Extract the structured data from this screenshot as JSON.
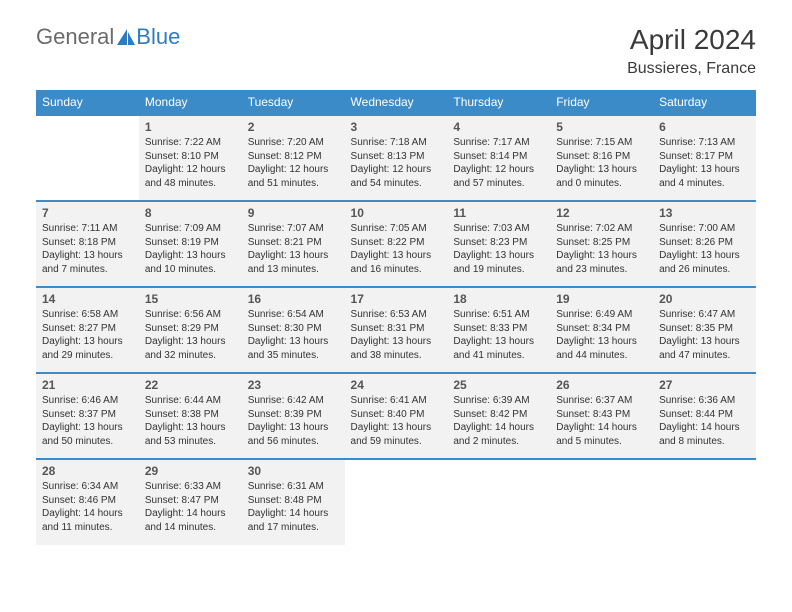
{
  "brand": {
    "part1": "General",
    "part2": "Blue"
  },
  "title": "April 2024",
  "location": "Bussieres, France",
  "weekday_headers": [
    "Sunday",
    "Monday",
    "Tuesday",
    "Wednesday",
    "Thursday",
    "Friday",
    "Saturday"
  ],
  "colors": {
    "header_bg": "#3b8bc9",
    "header_text": "#ffffff",
    "cell_bg": "#f2f2f2",
    "rule": "#3b8bc9",
    "title_color": "#3a3a3a",
    "logo_gray": "#6b6b6b",
    "logo_blue": "#2f7bbf"
  },
  "weeks": [
    [
      {
        "day": "",
        "sunrise": "",
        "sunset": "",
        "daylight1": "",
        "daylight2": ""
      },
      {
        "day": "1",
        "sunrise": "Sunrise: 7:22 AM",
        "sunset": "Sunset: 8:10 PM",
        "daylight1": "Daylight: 12 hours",
        "daylight2": "and 48 minutes."
      },
      {
        "day": "2",
        "sunrise": "Sunrise: 7:20 AM",
        "sunset": "Sunset: 8:12 PM",
        "daylight1": "Daylight: 12 hours",
        "daylight2": "and 51 minutes."
      },
      {
        "day": "3",
        "sunrise": "Sunrise: 7:18 AM",
        "sunset": "Sunset: 8:13 PM",
        "daylight1": "Daylight: 12 hours",
        "daylight2": "and 54 minutes."
      },
      {
        "day": "4",
        "sunrise": "Sunrise: 7:17 AM",
        "sunset": "Sunset: 8:14 PM",
        "daylight1": "Daylight: 12 hours",
        "daylight2": "and 57 minutes."
      },
      {
        "day": "5",
        "sunrise": "Sunrise: 7:15 AM",
        "sunset": "Sunset: 8:16 PM",
        "daylight1": "Daylight: 13 hours",
        "daylight2": "and 0 minutes."
      },
      {
        "day": "6",
        "sunrise": "Sunrise: 7:13 AM",
        "sunset": "Sunset: 8:17 PM",
        "daylight1": "Daylight: 13 hours",
        "daylight2": "and 4 minutes."
      }
    ],
    [
      {
        "day": "7",
        "sunrise": "Sunrise: 7:11 AM",
        "sunset": "Sunset: 8:18 PM",
        "daylight1": "Daylight: 13 hours",
        "daylight2": "and 7 minutes."
      },
      {
        "day": "8",
        "sunrise": "Sunrise: 7:09 AM",
        "sunset": "Sunset: 8:19 PM",
        "daylight1": "Daylight: 13 hours",
        "daylight2": "and 10 minutes."
      },
      {
        "day": "9",
        "sunrise": "Sunrise: 7:07 AM",
        "sunset": "Sunset: 8:21 PM",
        "daylight1": "Daylight: 13 hours",
        "daylight2": "and 13 minutes."
      },
      {
        "day": "10",
        "sunrise": "Sunrise: 7:05 AM",
        "sunset": "Sunset: 8:22 PM",
        "daylight1": "Daylight: 13 hours",
        "daylight2": "and 16 minutes."
      },
      {
        "day": "11",
        "sunrise": "Sunrise: 7:03 AM",
        "sunset": "Sunset: 8:23 PM",
        "daylight1": "Daylight: 13 hours",
        "daylight2": "and 19 minutes."
      },
      {
        "day": "12",
        "sunrise": "Sunrise: 7:02 AM",
        "sunset": "Sunset: 8:25 PM",
        "daylight1": "Daylight: 13 hours",
        "daylight2": "and 23 minutes."
      },
      {
        "day": "13",
        "sunrise": "Sunrise: 7:00 AM",
        "sunset": "Sunset: 8:26 PM",
        "daylight1": "Daylight: 13 hours",
        "daylight2": "and 26 minutes."
      }
    ],
    [
      {
        "day": "14",
        "sunrise": "Sunrise: 6:58 AM",
        "sunset": "Sunset: 8:27 PM",
        "daylight1": "Daylight: 13 hours",
        "daylight2": "and 29 minutes."
      },
      {
        "day": "15",
        "sunrise": "Sunrise: 6:56 AM",
        "sunset": "Sunset: 8:29 PM",
        "daylight1": "Daylight: 13 hours",
        "daylight2": "and 32 minutes."
      },
      {
        "day": "16",
        "sunrise": "Sunrise: 6:54 AM",
        "sunset": "Sunset: 8:30 PM",
        "daylight1": "Daylight: 13 hours",
        "daylight2": "and 35 minutes."
      },
      {
        "day": "17",
        "sunrise": "Sunrise: 6:53 AM",
        "sunset": "Sunset: 8:31 PM",
        "daylight1": "Daylight: 13 hours",
        "daylight2": "and 38 minutes."
      },
      {
        "day": "18",
        "sunrise": "Sunrise: 6:51 AM",
        "sunset": "Sunset: 8:33 PM",
        "daylight1": "Daylight: 13 hours",
        "daylight2": "and 41 minutes."
      },
      {
        "day": "19",
        "sunrise": "Sunrise: 6:49 AM",
        "sunset": "Sunset: 8:34 PM",
        "daylight1": "Daylight: 13 hours",
        "daylight2": "and 44 minutes."
      },
      {
        "day": "20",
        "sunrise": "Sunrise: 6:47 AM",
        "sunset": "Sunset: 8:35 PM",
        "daylight1": "Daylight: 13 hours",
        "daylight2": "and 47 minutes."
      }
    ],
    [
      {
        "day": "21",
        "sunrise": "Sunrise: 6:46 AM",
        "sunset": "Sunset: 8:37 PM",
        "daylight1": "Daylight: 13 hours",
        "daylight2": "and 50 minutes."
      },
      {
        "day": "22",
        "sunrise": "Sunrise: 6:44 AM",
        "sunset": "Sunset: 8:38 PM",
        "daylight1": "Daylight: 13 hours",
        "daylight2": "and 53 minutes."
      },
      {
        "day": "23",
        "sunrise": "Sunrise: 6:42 AM",
        "sunset": "Sunset: 8:39 PM",
        "daylight1": "Daylight: 13 hours",
        "daylight2": "and 56 minutes."
      },
      {
        "day": "24",
        "sunrise": "Sunrise: 6:41 AM",
        "sunset": "Sunset: 8:40 PM",
        "daylight1": "Daylight: 13 hours",
        "daylight2": "and 59 minutes."
      },
      {
        "day": "25",
        "sunrise": "Sunrise: 6:39 AM",
        "sunset": "Sunset: 8:42 PM",
        "daylight1": "Daylight: 14 hours",
        "daylight2": "and 2 minutes."
      },
      {
        "day": "26",
        "sunrise": "Sunrise: 6:37 AM",
        "sunset": "Sunset: 8:43 PM",
        "daylight1": "Daylight: 14 hours",
        "daylight2": "and 5 minutes."
      },
      {
        "day": "27",
        "sunrise": "Sunrise: 6:36 AM",
        "sunset": "Sunset: 8:44 PM",
        "daylight1": "Daylight: 14 hours",
        "daylight2": "and 8 minutes."
      }
    ],
    [
      {
        "day": "28",
        "sunrise": "Sunrise: 6:34 AM",
        "sunset": "Sunset: 8:46 PM",
        "daylight1": "Daylight: 14 hours",
        "daylight2": "and 11 minutes."
      },
      {
        "day": "29",
        "sunrise": "Sunrise: 6:33 AM",
        "sunset": "Sunset: 8:47 PM",
        "daylight1": "Daylight: 14 hours",
        "daylight2": "and 14 minutes."
      },
      {
        "day": "30",
        "sunrise": "Sunrise: 6:31 AM",
        "sunset": "Sunset: 8:48 PM",
        "daylight1": "Daylight: 14 hours",
        "daylight2": "and 17 minutes."
      },
      {
        "day": "",
        "sunrise": "",
        "sunset": "",
        "daylight1": "",
        "daylight2": ""
      },
      {
        "day": "",
        "sunrise": "",
        "sunset": "",
        "daylight1": "",
        "daylight2": ""
      },
      {
        "day": "",
        "sunrise": "",
        "sunset": "",
        "daylight1": "",
        "daylight2": ""
      },
      {
        "day": "",
        "sunrise": "",
        "sunset": "",
        "daylight1": "",
        "daylight2": ""
      }
    ]
  ]
}
